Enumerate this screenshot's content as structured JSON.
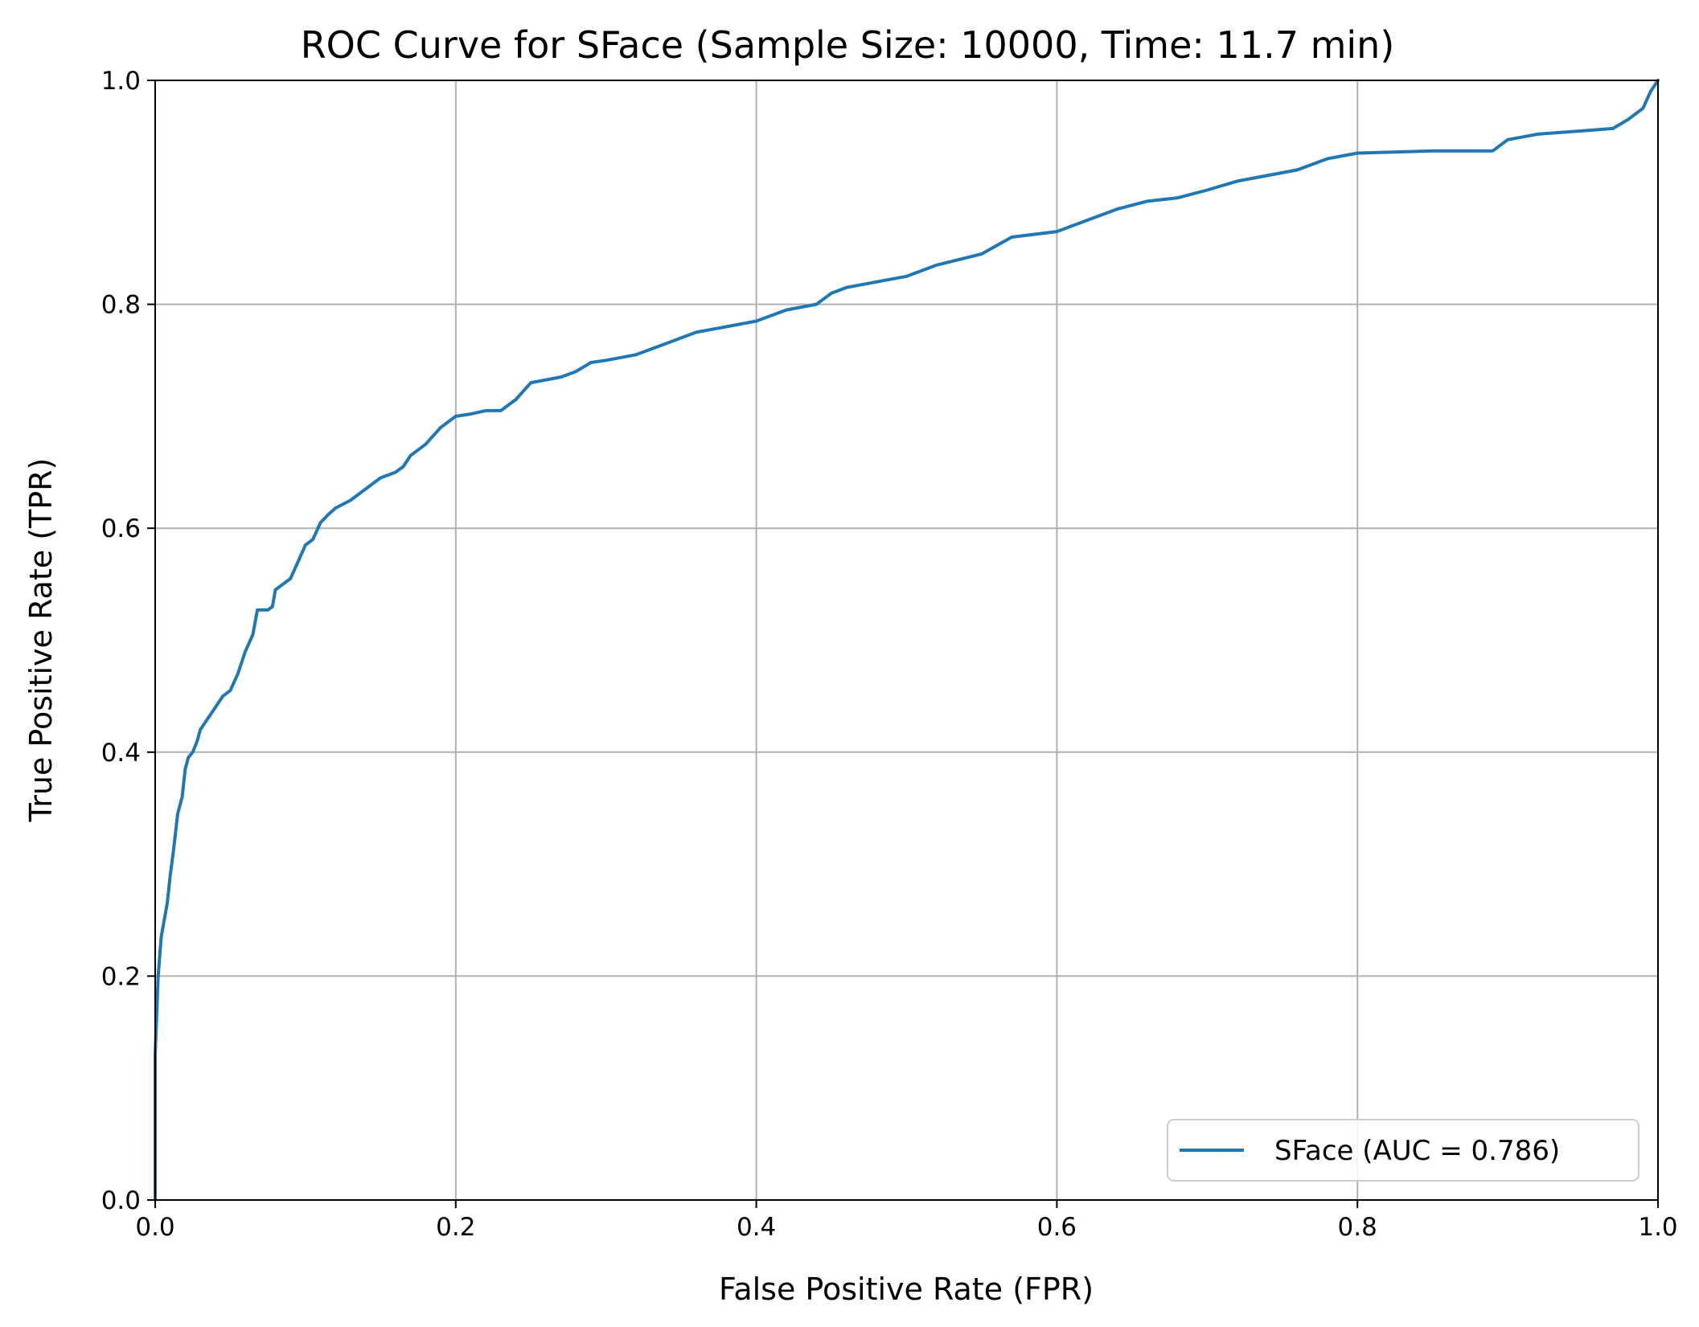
{
  "chart_data": {
    "type": "line",
    "title": "ROC Curve for SFace (Sample Size: 10000, Time: 11.7 min)",
    "xlabel": "False Positive Rate (FPR)",
    "ylabel": "True Positive Rate (TPR)",
    "xlim": [
      0.0,
      1.0
    ],
    "ylim": [
      0.0,
      1.0
    ],
    "xticks": [
      "0.0",
      "0.2",
      "0.4",
      "0.6",
      "0.8",
      "1.0"
    ],
    "yticks": [
      "0.0",
      "0.2",
      "0.4",
      "0.6",
      "0.8",
      "1.0"
    ],
    "grid": true,
    "legend": {
      "position": "lower-right"
    },
    "series": [
      {
        "name": "SFace (AUC = 0.786)",
        "color": "#1f77b4",
        "x": [
          0.0,
          0.0,
          0.002,
          0.004,
          0.006,
          0.008,
          0.01,
          0.012,
          0.015,
          0.018,
          0.02,
          0.022,
          0.025,
          0.028,
          0.03,
          0.035,
          0.04,
          0.045,
          0.05,
          0.055,
          0.06,
          0.065,
          0.068,
          0.072,
          0.075,
          0.078,
          0.08,
          0.09,
          0.095,
          0.1,
          0.105,
          0.11,
          0.115,
          0.12,
          0.13,
          0.14,
          0.15,
          0.16,
          0.165,
          0.17,
          0.18,
          0.19,
          0.2,
          0.21,
          0.22,
          0.23,
          0.24,
          0.25,
          0.27,
          0.28,
          0.29,
          0.3,
          0.32,
          0.34,
          0.36,
          0.38,
          0.4,
          0.42,
          0.44,
          0.45,
          0.46,
          0.48,
          0.5,
          0.52,
          0.55,
          0.57,
          0.6,
          0.62,
          0.64,
          0.66,
          0.68,
          0.7,
          0.72,
          0.74,
          0.76,
          0.78,
          0.8,
          0.85,
          0.89,
          0.9,
          0.92,
          0.95,
          0.97,
          0.98,
          0.99,
          0.995,
          1.0
        ],
        "y": [
          0.0,
          0.13,
          0.2,
          0.235,
          0.25,
          0.265,
          0.29,
          0.31,
          0.345,
          0.36,
          0.385,
          0.395,
          0.4,
          0.41,
          0.42,
          0.43,
          0.44,
          0.45,
          0.455,
          0.47,
          0.49,
          0.505,
          0.527,
          0.527,
          0.527,
          0.53,
          0.545,
          0.555,
          0.57,
          0.585,
          0.59,
          0.605,
          0.612,
          0.618,
          0.625,
          0.635,
          0.645,
          0.65,
          0.655,
          0.665,
          0.675,
          0.69,
          0.7,
          0.702,
          0.705,
          0.705,
          0.715,
          0.73,
          0.735,
          0.74,
          0.748,
          0.75,
          0.755,
          0.765,
          0.775,
          0.78,
          0.785,
          0.795,
          0.8,
          0.81,
          0.815,
          0.82,
          0.825,
          0.835,
          0.845,
          0.86,
          0.865,
          0.875,
          0.885,
          0.892,
          0.895,
          0.902,
          0.91,
          0.915,
          0.92,
          0.93,
          0.935,
          0.937,
          0.937,
          0.947,
          0.952,
          0.955,
          0.957,
          0.965,
          0.975,
          0.99,
          1.0
        ]
      }
    ]
  }
}
